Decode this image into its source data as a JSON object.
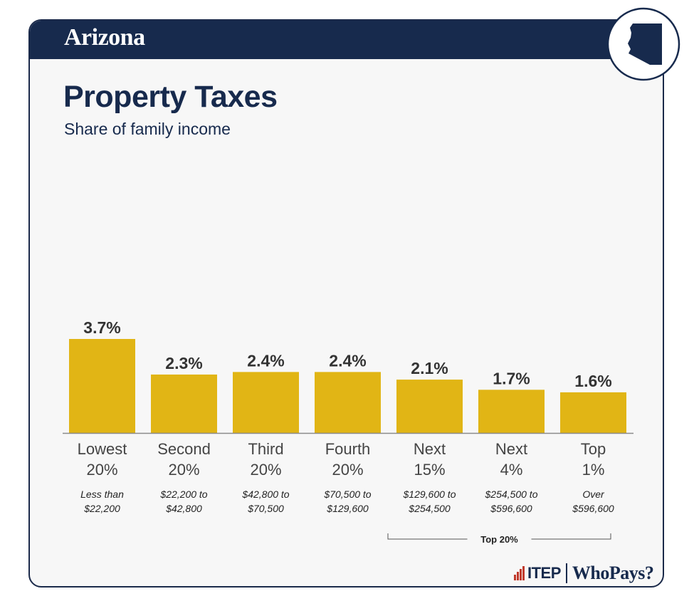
{
  "header": {
    "state": "Arizona"
  },
  "badge": {
    "icon": "arizona-map-icon"
  },
  "colors": {
    "navy": "#172a4d",
    "bar": "#e1b515",
    "baseline": "#8a8a8a"
  },
  "chart_data": {
    "type": "bar",
    "title": "Property Taxes",
    "subtitle": "Share of family income",
    "value_suffix": "%",
    "ylim": [
      0,
      3.7
    ],
    "grid": false,
    "categories": [
      {
        "line1": "Lowest",
        "line2": "20%",
        "range1": "Less than",
        "range2": "$22,200",
        "value": 3.7,
        "label": "3.7%"
      },
      {
        "line1": "Second",
        "line2": "20%",
        "range1": "$22,200 to",
        "range2": "$42,800",
        "value": 2.3,
        "label": "2.3%"
      },
      {
        "line1": "Third",
        "line2": "20%",
        "range1": "$42,800 to",
        "range2": "$70,500",
        "value": 2.4,
        "label": "2.4%"
      },
      {
        "line1": "Fourth",
        "line2": "20%",
        "range1": "$70,500 to",
        "range2": "$129,600",
        "value": 2.4,
        "label": "2.4%"
      },
      {
        "line1": "Next",
        "line2": "15%",
        "range1": "$129,600 to",
        "range2": "$254,500",
        "value": 2.1,
        "label": "2.1%"
      },
      {
        "line1": "Next",
        "line2": "4%",
        "range1": "$254,500 to",
        "range2": "$596,600",
        "value": 1.7,
        "label": "1.7%"
      },
      {
        "line1": "Top",
        "line2": "1%",
        "range1": "Over",
        "range2": "$596,600",
        "value": 1.6,
        "label": "1.6%"
      }
    ],
    "bracket": {
      "label": "Top 20%",
      "from_index": 4,
      "to_index": 6
    }
  },
  "footer": {
    "org": "ITEP",
    "product": "WhoPays?"
  }
}
